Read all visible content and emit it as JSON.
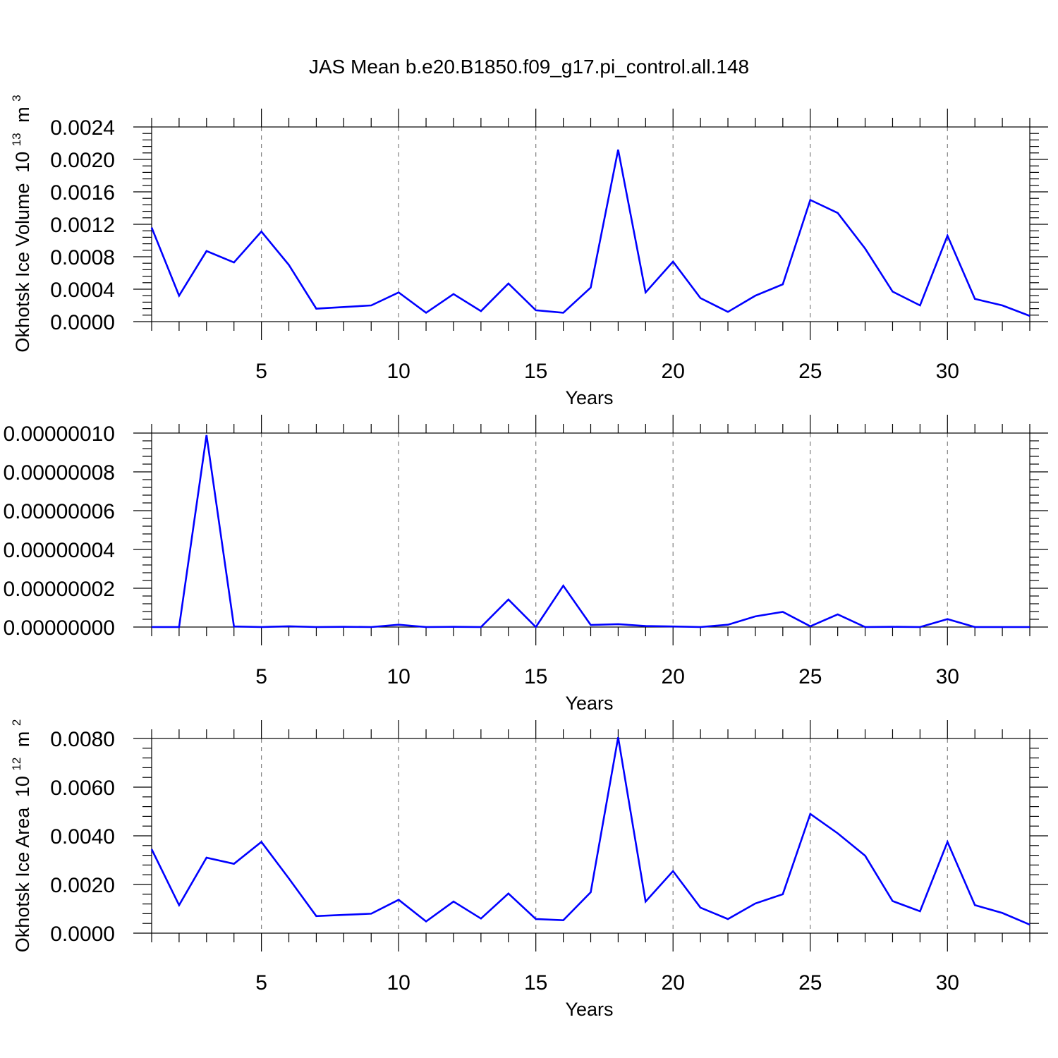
{
  "title": "JAS Mean b.e20.B1850.f09_g17.pi_control.all.148",
  "colors": {
    "line": "#0000ff",
    "grid": "#808080",
    "frame": "#000000"
  },
  "chart_data": [
    {
      "type": "line",
      "xlabel": "Years",
      "ylabel": "Okhotsk Ice Volume",
      "ylabel_unit_base": "10",
      "ylabel_unit_exp": "13",
      "ylabel_unit_name": "m",
      "ylabel_unit_name_exp": "3",
      "xlim": [
        1,
        33
      ],
      "ylim": [
        0,
        0.0024
      ],
      "xticks": [
        5,
        10,
        15,
        20,
        25,
        30
      ],
      "xtick_labels": [
        "5",
        "10",
        "15",
        "20",
        "25",
        "30"
      ],
      "yticks": [
        0,
        0.0004,
        0.0008,
        0.0012,
        0.0016,
        0.002,
        0.0024
      ],
      "ytick_labels": [
        "0.0000",
        "0.0004",
        "0.0008",
        "0.0012",
        "0.0016",
        "0.0020",
        "0.0024"
      ],
      "grid": "x-dashed",
      "x": [
        1,
        2,
        3,
        4,
        5,
        6,
        7,
        8,
        9,
        10,
        11,
        12,
        13,
        14,
        15,
        16,
        17,
        18,
        19,
        20,
        21,
        22,
        23,
        24,
        25,
        26,
        27,
        28,
        29,
        30,
        31,
        32,
        33
      ],
      "y": [
        0.00116,
        0.00032,
        0.00087,
        0.00073,
        0.00111,
        0.0007,
        0.00016,
        0.00018,
        0.0002,
        0.00036,
        0.00011,
        0.00034,
        0.00013,
        0.00047,
        0.00014,
        0.00011,
        0.00042,
        0.00212,
        0.00036,
        0.00074,
        0.00029,
        0.00012,
        0.00032,
        0.00046,
        0.0015,
        0.00134,
        0.0009,
        0.00037,
        0.0002,
        0.00106,
        0.00028,
        0.0002,
        7e-05
      ]
    },
    {
      "type": "line",
      "xlabel": "Years",
      "ylabel": "",
      "xlim": [
        1,
        33
      ],
      "ylim": [
        0,
        1e-07
      ],
      "xticks": [
        5,
        10,
        15,
        20,
        25,
        30
      ],
      "xtick_labels": [
        "5",
        "10",
        "15",
        "20",
        "25",
        "30"
      ],
      "yticks": [
        0,
        2e-08,
        4e-08,
        6e-08,
        8e-08,
        1e-07
      ],
      "ytick_labels": [
        "0.00000000",
        "0.00000002",
        "0.00000004",
        "0.00000006",
        "0.00000008",
        "0.00000010"
      ],
      "grid": "x-dashed",
      "x": [
        1,
        2,
        3,
        4,
        5,
        6,
        7,
        8,
        9,
        10,
        11,
        12,
        13,
        14,
        15,
        16,
        17,
        18,
        19,
        20,
        21,
        22,
        23,
        24,
        25,
        26,
        27,
        28,
        29,
        30,
        31,
        32,
        33
      ],
      "y": [
        0,
        0,
        9.9e-08,
        3e-10,
        0,
        4e-10,
        0,
        1e-10,
        0,
        1.2e-09,
        0,
        1e-10,
        0,
        1.42e-08,
        0,
        2.13e-08,
        1.1e-09,
        1.5e-09,
        5e-10,
        3e-10,
        0,
        1.2e-09,
        5.5e-09,
        7.8e-09,
        4e-10,
        6.5e-09,
        0,
        1e-10,
        0,
        4.1e-09,
        0,
        0,
        0
      ]
    },
    {
      "type": "line",
      "xlabel": "Years",
      "ylabel": "Okhotsk Ice Area",
      "ylabel_unit_base": "10",
      "ylabel_unit_exp": "12",
      "ylabel_unit_name": "m",
      "ylabel_unit_name_exp": "2",
      "xlim": [
        1,
        33
      ],
      "ylim": [
        0,
        0.008
      ],
      "xticks": [
        5,
        10,
        15,
        20,
        25,
        30
      ],
      "xtick_labels": [
        "5",
        "10",
        "15",
        "20",
        "25",
        "30"
      ],
      "yticks": [
        0,
        0.002,
        0.004,
        0.006,
        0.008
      ],
      "ytick_labels": [
        "0.0000",
        "0.0020",
        "0.0040",
        "0.0060",
        "0.0080"
      ],
      "grid": "x-dashed",
      "x": [
        1,
        2,
        3,
        4,
        5,
        6,
        7,
        8,
        9,
        10,
        11,
        12,
        13,
        14,
        15,
        16,
        17,
        18,
        19,
        20,
        21,
        22,
        23,
        24,
        25,
        26,
        27,
        28,
        29,
        30,
        31,
        32,
        33
      ],
      "y": [
        0.00345,
        0.00115,
        0.0031,
        0.00285,
        0.00375,
        0.00225,
        0.0007,
        0.00075,
        0.0008,
        0.00137,
        0.00048,
        0.0013,
        0.0006,
        0.00163,
        0.00058,
        0.00053,
        0.00168,
        0.00805,
        0.0013,
        0.00255,
        0.00105,
        0.00058,
        0.00122,
        0.0016,
        0.0049,
        0.0041,
        0.00318,
        0.00132,
        0.0009,
        0.00375,
        0.00115,
        0.00083,
        0.00035
      ]
    }
  ]
}
